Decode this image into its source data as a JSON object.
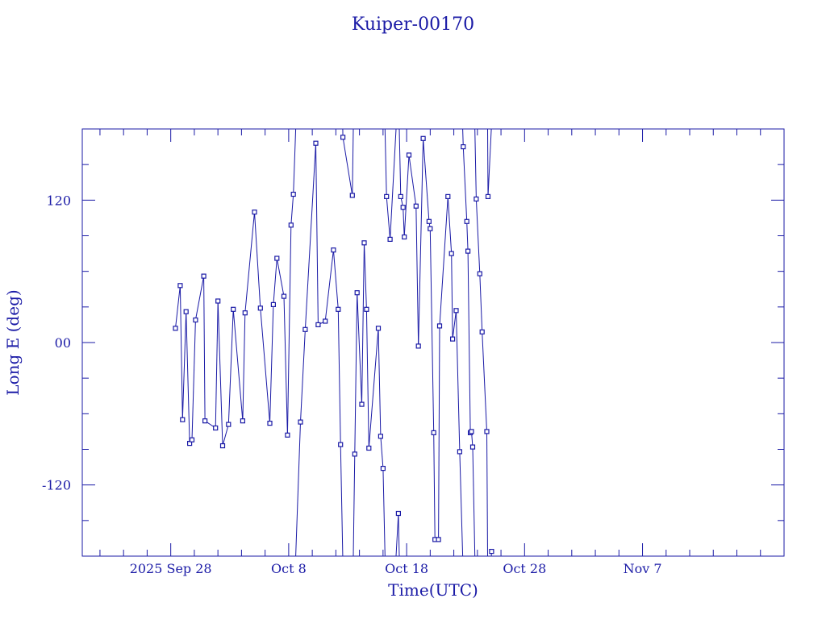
{
  "chart_data": {
    "type": "line",
    "title": "Kuiper-00170",
    "xlabel": "Time(UTC)",
    "ylabel": "Long E (deg)",
    "ylim": [
      -180,
      180
    ],
    "y_ticks": [
      {
        "value": 120,
        "label": "120"
      },
      {
        "value": 0,
        "label": "00"
      },
      {
        "value": -120,
        "label": "-120"
      }
    ],
    "x_ticks": [
      {
        "value": 2,
        "label": "2025 Sep 28"
      },
      {
        "value": 12,
        "label": "Oct  8"
      },
      {
        "value": 22,
        "label": "Oct 18"
      },
      {
        "value": 32,
        "label": "Oct 28"
      },
      {
        "value": 42,
        "label": "Nov  7"
      }
    ],
    "x_range_days_since_sep26": [
      -5.5,
      54
    ],
    "colors": {
      "series": "#1a1aa6",
      "axis": "#1a1aa6"
    },
    "series": [
      {
        "values": [
          [
            2.4,
            12
          ],
          [
            2.8,
            48
          ],
          [
            3.0,
            -65
          ],
          [
            3.3,
            26
          ],
          [
            3.6,
            -85
          ],
          [
            3.8,
            -82
          ],
          [
            4.1,
            19
          ],
          [
            4.8,
            56
          ],
          [
            4.9,
            -66
          ],
          [
            5.8,
            -72
          ],
          [
            6.0,
            35
          ],
          [
            6.4,
            -87
          ],
          [
            6.9,
            -69
          ],
          [
            7.3,
            28
          ],
          [
            8.1,
            -66
          ],
          [
            8.3,
            25
          ],
          [
            9.1,
            110
          ],
          [
            9.6,
            29
          ],
          [
            10.4,
            -68
          ],
          [
            10.7,
            32
          ],
          [
            11.0,
            71
          ],
          [
            11.6,
            39
          ],
          [
            11.9,
            -78
          ],
          [
            12.2,
            99
          ],
          [
            12.4,
            125
          ],
          [
            13.0,
            -67
          ],
          [
            13.4,
            11
          ],
          [
            14.3,
            168
          ],
          [
            14.5,
            15
          ],
          [
            15.1,
            18
          ],
          [
            15.8,
            78
          ],
          [
            16.2,
            28
          ],
          [
            16.4,
            -86
          ],
          [
            16.6,
            173
          ],
          [
            17.4,
            124
          ],
          [
            17.6,
            -94
          ],
          [
            17.8,
            42
          ],
          [
            18.2,
            -52
          ],
          [
            18.4,
            84
          ],
          [
            18.6,
            28
          ],
          [
            18.8,
            -89
          ],
          [
            19.6,
            12
          ],
          [
            19.8,
            -79
          ],
          [
            20.0,
            -106
          ],
          [
            20.3,
            123
          ],
          [
            20.6,
            87
          ],
          [
            21.3,
            -144
          ],
          [
            21.5,
            123
          ],
          [
            21.7,
            114
          ],
          [
            21.8,
            89
          ],
          [
            22.2,
            158
          ],
          [
            22.8,
            115
          ],
          [
            23.0,
            -3
          ],
          [
            23.4,
            172
          ],
          [
            23.9,
            102
          ],
          [
            24.0,
            96
          ],
          [
            24.3,
            -76
          ],
          [
            24.4,
            -166
          ],
          [
            24.7,
            -166
          ],
          [
            24.8,
            14
          ],
          [
            25.5,
            123
          ],
          [
            25.8,
            75
          ],
          [
            25.9,
            3
          ],
          [
            26.2,
            27
          ],
          [
            26.5,
            -92
          ],
          [
            26.8,
            165
          ],
          [
            27.1,
            102
          ],
          [
            27.2,
            77
          ],
          [
            27.4,
            -76
          ],
          [
            27.5,
            -75
          ],
          [
            27.6,
            -88
          ],
          [
            27.9,
            121
          ],
          [
            28.2,
            58
          ],
          [
            28.4,
            9
          ],
          [
            28.8,
            -75
          ],
          [
            28.9,
            123
          ],
          [
            29.2,
            -176
          ]
        ]
      }
    ]
  }
}
